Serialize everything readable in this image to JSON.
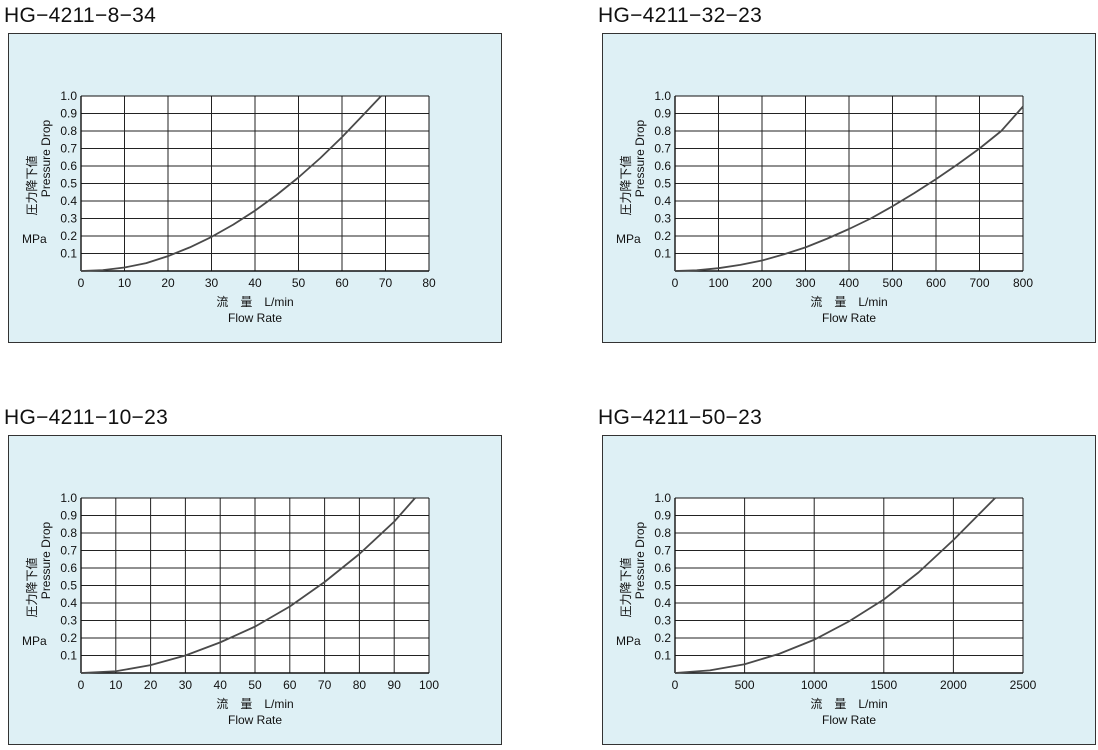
{
  "colors": {
    "panel_bg": "#def0f5",
    "grid": "#222222",
    "curve": "#4a4a4a"
  },
  "chart_data": [
    {
      "title": "HG−4211−8−34",
      "type": "line",
      "ylabel_cn": "圧力降下値",
      "ylabel_en": "Pressure Drop",
      "yunit": "MPa",
      "xlabel_cn": "流　量　L/min",
      "xlabel_en": "Flow Rate",
      "xlim": [
        0,
        80
      ],
      "ylim": [
        0,
        1.0
      ],
      "x_ticks": [
        "0",
        "10",
        "20",
        "30",
        "40",
        "50",
        "60",
        "70",
        "80"
      ],
      "y_ticks": [
        "0.1",
        "0.2",
        "0.3",
        "0.4",
        "0.5",
        "0.6",
        "0.7",
        "0.8",
        "0.9",
        "1.0"
      ],
      "grid": true,
      "series": [
        {
          "x": [
            0,
            5,
            10,
            15,
            20,
            25,
            30,
            35,
            40,
            45,
            50,
            55,
            60,
            65,
            69
          ],
          "y": [
            0,
            0.005,
            0.02,
            0.045,
            0.085,
            0.135,
            0.195,
            0.265,
            0.345,
            0.435,
            0.535,
            0.645,
            0.765,
            0.895,
            1.0
          ]
        }
      ]
    },
    {
      "title": "HG−4211−32−23",
      "type": "line",
      "ylabel_cn": "圧力降下値",
      "ylabel_en": "Pressure Drop",
      "yunit": "MPa",
      "xlabel_cn": "流　量　L/min",
      "xlabel_en": "Flow Rate",
      "xlim": [
        0,
        800
      ],
      "ylim": [
        0,
        1.0
      ],
      "x_ticks": [
        "0",
        "100",
        "200",
        "300",
        "400",
        "500",
        "600",
        "700",
        "800"
      ],
      "y_ticks": [
        "0.1",
        "0.2",
        "0.3",
        "0.4",
        "0.5",
        "0.6",
        "0.7",
        "0.8",
        "0.9",
        "1.0"
      ],
      "grid": true,
      "series": [
        {
          "x": [
            0,
            50,
            100,
            150,
            200,
            250,
            300,
            350,
            400,
            450,
            500,
            550,
            600,
            650,
            700,
            750,
            800
          ],
          "y": [
            0,
            0.004,
            0.016,
            0.035,
            0.06,
            0.095,
            0.135,
            0.185,
            0.24,
            0.3,
            0.37,
            0.445,
            0.525,
            0.61,
            0.7,
            0.8,
            0.94
          ]
        }
      ]
    },
    {
      "title": "HG−4211−10−23",
      "type": "line",
      "ylabel_cn": "圧力降下値",
      "ylabel_en": "Pressure Drop",
      "yunit": "MPa",
      "xlabel_cn": "流　量　L/min",
      "xlabel_en": "Flow Rate",
      "xlim": [
        0,
        100
      ],
      "ylim": [
        0,
        1.0
      ],
      "x_ticks": [
        "0",
        "10",
        "20",
        "30",
        "40",
        "50",
        "60",
        "70",
        "80",
        "90",
        "100"
      ],
      "y_ticks": [
        "0.1",
        "0.2",
        "0.3",
        "0.4",
        "0.5",
        "0.6",
        "0.7",
        "0.8",
        "0.9",
        "1.0"
      ],
      "grid": true,
      "series": [
        {
          "x": [
            0,
            10,
            20,
            30,
            40,
            50,
            60,
            70,
            80,
            90,
            96
          ],
          "y": [
            0,
            0.01,
            0.045,
            0.1,
            0.175,
            0.265,
            0.38,
            0.52,
            0.68,
            0.865,
            1.0
          ]
        }
      ]
    },
    {
      "title": "HG−4211−50−23",
      "type": "line",
      "ylabel_cn": "圧力降下値",
      "ylabel_en": "Pressure Drop",
      "yunit": "MPa",
      "xlabel_cn": "流　量　L/min",
      "xlabel_en": "Flow Rate",
      "xlim": [
        0,
        2500
      ],
      "ylim": [
        0,
        1.0
      ],
      "x_ticks": [
        "0",
        "500",
        "1000",
        "1500",
        "2000",
        "2500"
      ],
      "y_ticks": [
        "0.1",
        "0.2",
        "0.3",
        "0.4",
        "0.5",
        "0.6",
        "0.7",
        "0.8",
        "0.9",
        "1.0"
      ],
      "grid": true,
      "series": [
        {
          "x": [
            0,
            250,
            500,
            750,
            1000,
            1250,
            1500,
            1750,
            2000,
            2300
          ],
          "y": [
            0,
            0.015,
            0.05,
            0.11,
            0.19,
            0.295,
            0.42,
            0.575,
            0.76,
            1.0
          ]
        }
      ]
    }
  ]
}
